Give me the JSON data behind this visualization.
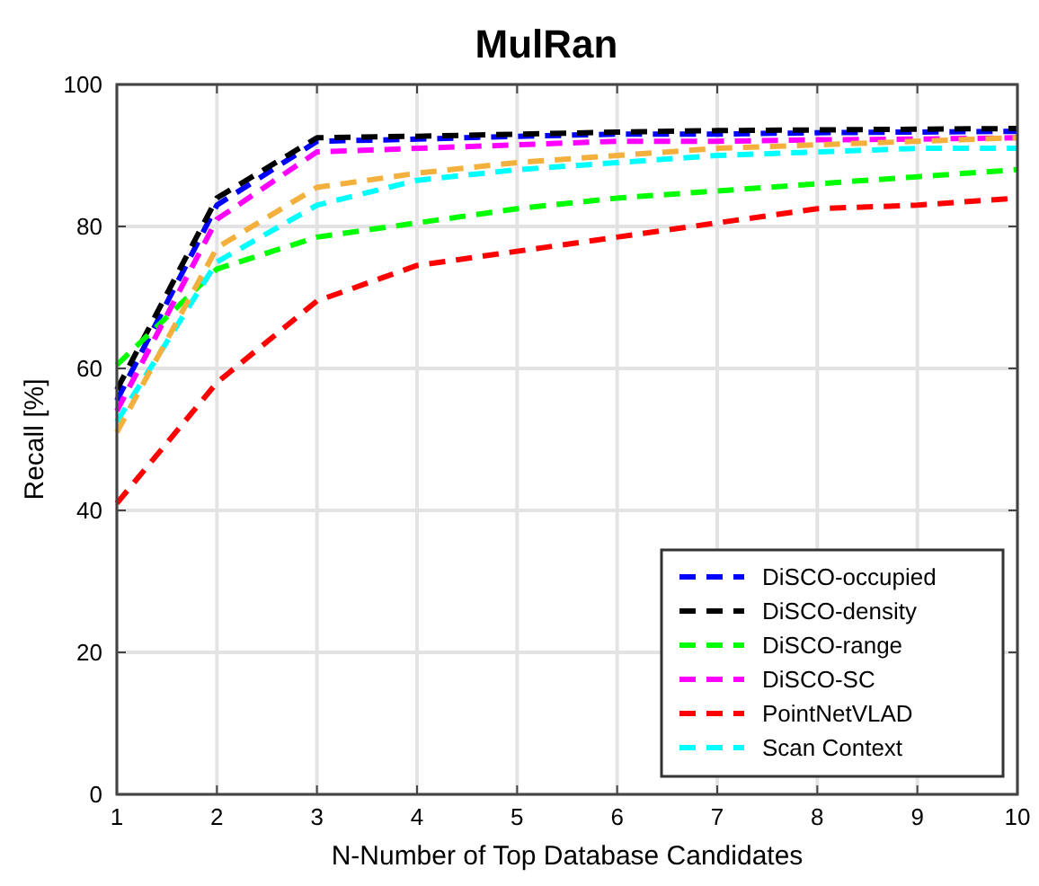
{
  "chart_data": {
    "type": "line",
    "title": "MulRan",
    "xlabel": "N-Number of Top Database Candidates",
    "ylabel": "Recall [%]",
    "x": [
      1,
      2,
      3,
      4,
      5,
      6,
      7,
      8,
      9,
      10
    ],
    "xlim": [
      1,
      10
    ],
    "xticks": [
      1,
      2,
      3,
      4,
      5,
      6,
      7,
      8,
      9,
      10
    ],
    "ylim": [
      0,
      100
    ],
    "yticks": [
      0,
      20,
      40,
      60,
      80,
      100
    ],
    "grid": true,
    "legend": "bottom right",
    "line_style": "dashed",
    "series": [
      {
        "name": "DiSCO-occupied",
        "color": "#0000ff",
        "values": [
          55.5,
          83,
          92,
          92.3,
          92.7,
          93,
          93,
          93.2,
          93.3,
          93.4
        ]
      },
      {
        "name": "DiSCO-density",
        "color": "#000000",
        "values": [
          57,
          84,
          92.5,
          92.7,
          93,
          93.3,
          93.5,
          93.6,
          93.7,
          93.8
        ]
      },
      {
        "name": "DiSCO-range",
        "color": "#00ff00",
        "values": [
          60.5,
          74,
          78.5,
          80.5,
          82.5,
          84,
          85,
          86,
          87,
          88
        ]
      },
      {
        "name": "DiSCO-SC",
        "color": "#ff00ff",
        "values": [
          54,
          81,
          90.5,
          91,
          91.5,
          92,
          92,
          92.2,
          92.3,
          92.5
        ]
      },
      {
        "name": "PointNetVLAD",
        "color": "#ff0000",
        "values": [
          41,
          58,
          69.5,
          74.5,
          76.5,
          78.5,
          80.5,
          82.5,
          83,
          84
        ]
      },
      {
        "name": "Scan Context",
        "color": "#00ffff",
        "values": [
          52.5,
          75,
          83,
          86.5,
          88,
          89,
          90,
          90.5,
          91,
          91
        ]
      },
      {
        "color": "#f4b03c",
        "values": [
          51,
          77,
          85.5,
          87.5,
          89,
          90,
          91,
          91.5,
          92,
          92.5
        ]
      }
    ]
  }
}
